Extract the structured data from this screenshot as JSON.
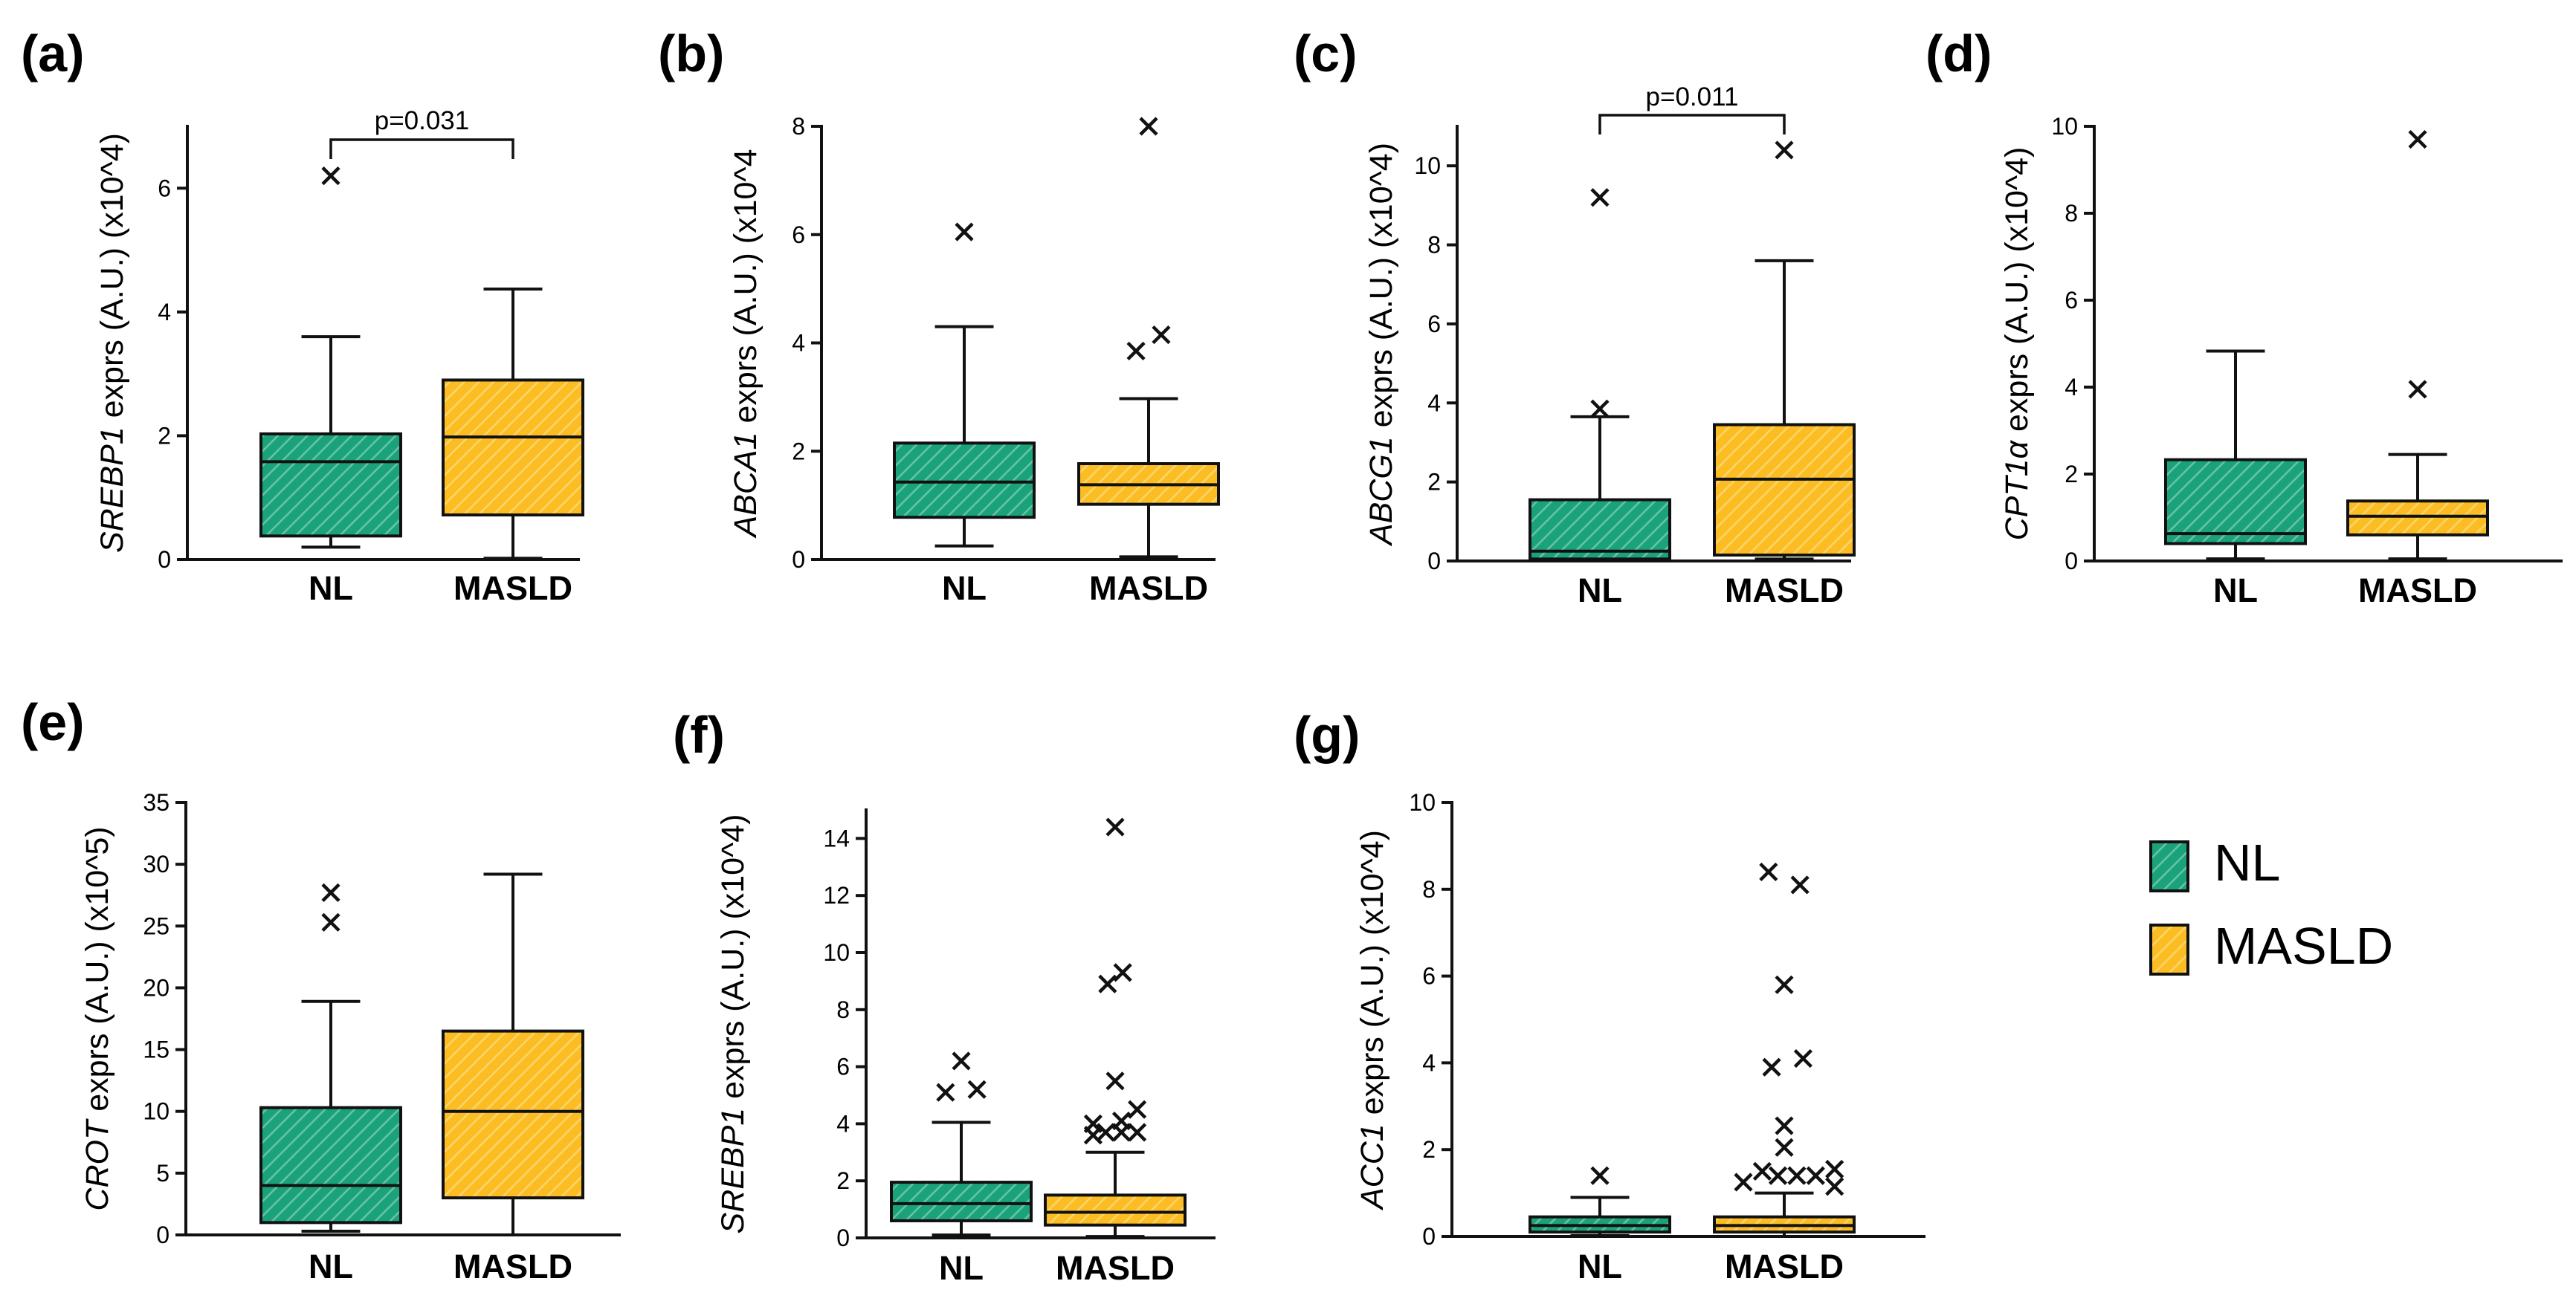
{
  "colors": {
    "nl": "#1aa37a",
    "masld": "#fbbd22",
    "stroke": "#111111"
  },
  "legend": {
    "items": [
      {
        "label": "NL",
        "color": "#1aa37a"
      },
      {
        "label": "MASLD",
        "color": "#fbbd22"
      }
    ]
  },
  "chart_data": [
    {
      "panel": "(a)",
      "type": "boxplot",
      "gene": "SREBP1",
      "ylabel_suffix": " exprs (A.U.) (x10^4)",
      "ylim": [
        0,
        7
      ],
      "yticks": [
        0,
        2,
        4,
        6
      ],
      "categories": [
        "NL",
        "MASLD"
      ],
      "series": [
        {
          "name": "NL",
          "whisker_low": 0.2,
          "q1": 0.38,
          "median": 1.58,
          "q3": 2.03,
          "whisker_high": 3.6,
          "outliers": [
            {
              "x": 0,
              "y": 6.2
            }
          ]
        },
        {
          "name": "MASLD",
          "whisker_low": 0.02,
          "q1": 0.72,
          "median": 1.98,
          "q3": 2.9,
          "whisker_high": 4.37,
          "outliers": []
        }
      ],
      "annotation": {
        "text": "p=0.031"
      }
    },
    {
      "panel": "(b)",
      "type": "boxplot",
      "gene": "ABCA1",
      "ylabel_suffix": " exprs (A.U.) (x10^4",
      "ylim": [
        0,
        8
      ],
      "yticks": [
        0,
        2,
        4,
        6,
        8
      ],
      "categories": [
        "NL",
        "MASLD"
      ],
      "series": [
        {
          "name": "NL",
          "whisker_low": 0.25,
          "q1": 0.78,
          "median": 1.43,
          "q3": 2.15,
          "whisker_high": 4.3,
          "outliers": [
            {
              "x": 0,
              "y": 6.05
            }
          ]
        },
        {
          "name": "MASLD",
          "whisker_low": 0.05,
          "q1": 1.02,
          "median": 1.38,
          "q3": 1.77,
          "whisker_high": 2.97,
          "outliers": [
            {
              "x": -0.2,
              "y": 3.85
            },
            {
              "x": 0.2,
              "y": 4.15
            },
            {
              "x": 0,
              "y": 8.0
            }
          ]
        }
      ]
    },
    {
      "panel": "(c)",
      "type": "boxplot",
      "gene": "ABCG1",
      "ylabel_suffix": " exprs (A.U.) (x10^4)",
      "ylim": [
        0,
        11
      ],
      "yticks": [
        0,
        2,
        4,
        6,
        8,
        10
      ],
      "categories": [
        "NL",
        "MASLD"
      ],
      "series": [
        {
          "name": "NL",
          "whisker_low": 0.0,
          "q1": 0.05,
          "median": 0.25,
          "q3": 1.55,
          "whisker_high": 3.65,
          "outliers": [
            {
              "x": 0,
              "y": 3.85
            },
            {
              "x": 0,
              "y": 9.2
            }
          ]
        },
        {
          "name": "MASLD",
          "whisker_low": 0.05,
          "q1": 0.15,
          "median": 2.07,
          "q3": 3.45,
          "whisker_high": 7.6,
          "outliers": [
            {
              "x": 0,
              "y": 10.4
            }
          ]
        }
      ],
      "annotation": {
        "text": "p=0.011"
      }
    },
    {
      "panel": "(d)",
      "type": "boxplot",
      "gene": "CPT1α",
      "ylabel_suffix": " exprs (A.U.) (x10^4)",
      "ylim": [
        0,
        10
      ],
      "yticks": [
        0,
        2,
        4,
        6,
        8,
        10
      ],
      "categories": [
        "NL",
        "MASLD"
      ],
      "series": [
        {
          "name": "NL",
          "whisker_low": 0.05,
          "q1": 0.4,
          "median": 0.63,
          "q3": 2.33,
          "whisker_high": 4.83,
          "outliers": []
        },
        {
          "name": "MASLD",
          "whisker_low": 0.05,
          "q1": 0.6,
          "median": 1.03,
          "q3": 1.38,
          "whisker_high": 2.45,
          "outliers": [
            {
              "x": 0,
              "y": 3.95
            },
            {
              "x": 0,
              "y": 9.7
            }
          ]
        }
      ]
    },
    {
      "panel": "(e)",
      "type": "boxplot",
      "gene": "CROT",
      "ylabel_suffix": " exprs (A.U.) (x10^5)",
      "ylim": [
        0,
        35
      ],
      "yticks": [
        0,
        5,
        10,
        15,
        20,
        25,
        30,
        35
      ],
      "categories": [
        "NL",
        "MASLD"
      ],
      "series": [
        {
          "name": "NL",
          "whisker_low": 0.3,
          "q1": 1.0,
          "median": 4.0,
          "q3": 10.3,
          "whisker_high": 18.9,
          "outliers": [
            {
              "x": 0,
              "y": 25.3
            },
            {
              "x": 0,
              "y": 27.7
            }
          ]
        },
        {
          "name": "MASLD",
          "whisker_low": 0.0,
          "q1": 3.0,
          "median": 10.0,
          "q3": 16.5,
          "whisker_high": 29.2,
          "outliers": []
        }
      ]
    },
    {
      "panel": "(f)",
      "type": "boxplot",
      "gene": "SREBP1",
      "ylabel_suffix": " exprs (A.U.) (x10^4)",
      "ylim": [
        0,
        15
      ],
      "yticks": [
        0,
        2,
        4,
        6,
        8,
        10,
        12,
        14
      ],
      "categories": [
        "NL",
        "MASLD"
      ],
      "series": [
        {
          "name": "NL",
          "whisker_low": 0.1,
          "q1": 0.6,
          "median": 1.2,
          "q3": 1.95,
          "whisker_high": 4.05,
          "outliers": [
            {
              "x": -0.25,
              "y": 5.1
            },
            {
              "x": 0.25,
              "y": 5.2
            },
            {
              "x": 0,
              "y": 6.2
            }
          ]
        },
        {
          "name": "MASLD",
          "whisker_low": 0.05,
          "q1": 0.45,
          "median": 0.9,
          "q3": 1.5,
          "whisker_high": 3.0,
          "outliers": [
            {
              "x": -0.35,
              "y": 3.6
            },
            {
              "x": -0.35,
              "y": 4.0
            },
            {
              "x": -0.15,
              "y": 3.7
            },
            {
              "x": 0.1,
              "y": 3.7
            },
            {
              "x": 0.1,
              "y": 4.1
            },
            {
              "x": 0.35,
              "y": 3.7
            },
            {
              "x": 0.35,
              "y": 4.5
            },
            {
              "x": 0,
              "y": 5.5
            },
            {
              "x": -0.12,
              "y": 8.9
            },
            {
              "x": 0.12,
              "y": 9.3
            },
            {
              "x": 0,
              "y": 14.4
            }
          ]
        }
      ]
    },
    {
      "panel": "(g)",
      "type": "boxplot",
      "gene": "ACC1",
      "ylabel_suffix": " exprs (A.U.) (x10^4)",
      "ylim": [
        0,
        10
      ],
      "yticks": [
        0,
        2,
        4,
        6,
        8,
        10
      ],
      "categories": [
        "NL",
        "MASLD"
      ],
      "series": [
        {
          "name": "NL",
          "whisker_low": 0.02,
          "q1": 0.1,
          "median": 0.25,
          "q3": 0.45,
          "whisker_high": 0.9,
          "outliers": [
            {
              "x": 0,
              "y": 1.4
            }
          ]
        },
        {
          "name": "MASLD",
          "whisker_low": 0.0,
          "q1": 0.1,
          "median": 0.25,
          "q3": 0.45,
          "whisker_high": 1.0,
          "outliers": [
            {
              "x": -0.65,
              "y": 1.25
            },
            {
              "x": -0.35,
              "y": 1.5
            },
            {
              "x": -0.1,
              "y": 1.4
            },
            {
              "x": 0.2,
              "y": 1.4
            },
            {
              "x": 0.5,
              "y": 1.4
            },
            {
              "x": 0.8,
              "y": 1.15
            },
            {
              "x": 0.8,
              "y": 1.55
            },
            {
              "x": 0,
              "y": 2.05
            },
            {
              "x": 0,
              "y": 2.55
            },
            {
              "x": -0.2,
              "y": 3.9
            },
            {
              "x": 0.3,
              "y": 4.1
            },
            {
              "x": 0,
              "y": 5.8
            },
            {
              "x": -0.25,
              "y": 8.4
            },
            {
              "x": 0.25,
              "y": 8.1
            }
          ]
        }
      ]
    }
  ]
}
